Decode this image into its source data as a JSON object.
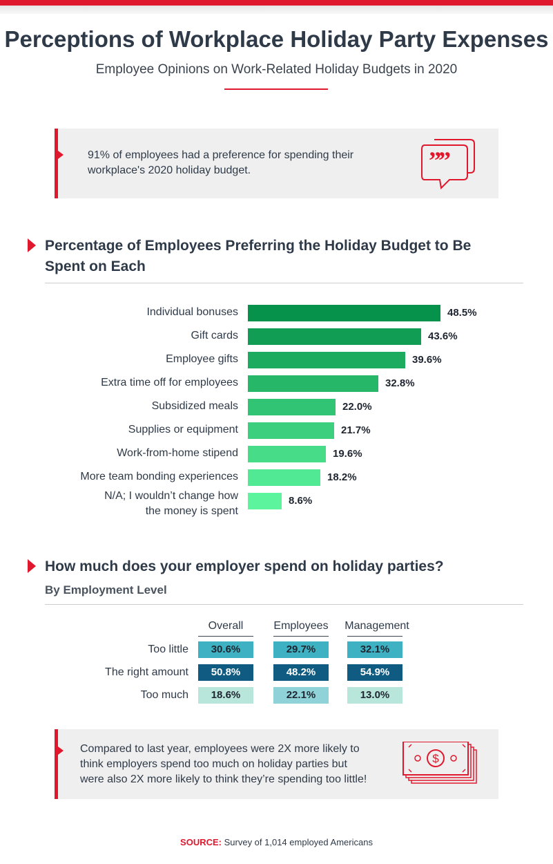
{
  "title": "Perceptions of Workplace Holiday Party Expenses",
  "subtitle": "Employee Opinions on Work-Related Holiday Budgets in 2020",
  "callout1": {
    "line1": "91% of employees had a preference for spending their",
    "line2": "workplace's 2020 holiday budget.",
    "icon": "quote-speech-bubbles-icon"
  },
  "section1": {
    "title_line1": "Percentage of Employees Preferring the Holiday Budget to Be",
    "title_line2": "Spent on Each"
  },
  "section2": {
    "title": "How much does your employer spend on holiday parties?",
    "subtitle": "By Employment  Level"
  },
  "callout2": {
    "line1": "Compared to last year, employees were 2X more likely to",
    "line2": "think employers spend too much on holiday parties but",
    "line3": "were also 2X more likely to think they’re spending too little!",
    "icon": "money-bills-icon"
  },
  "source": {
    "label": "SOURCE:",
    "text": "Survey of 1,014 employed Americans"
  },
  "colors": {
    "accent": "#e0182d",
    "bar_darkest": "#06924a",
    "bar_lightest": "#5cf59d",
    "table_too_little": "#3eb2c2",
    "table_right_amount": "#0f5b82",
    "table_too_much": "#b9e6da"
  },
  "chart_data": [
    {
      "type": "bar",
      "orientation": "horizontal",
      "categories": [
        "Individual bonuses",
        "Gift cards",
        "Employee gifts",
        "Extra time off for employees",
        "Subsidized meals",
        "Supplies or equipment",
        "Work-from-home stipend",
        "More team bonding experiences",
        "N/A; I wouldn’t change how the money is spent"
      ],
      "values": [
        48.5,
        43.6,
        39.6,
        32.8,
        22.0,
        21.7,
        19.6,
        18.2,
        8.6
      ],
      "value_labels": [
        "48.5%",
        "43.6%",
        "39.6%",
        "32.8%",
        "22.0%",
        "21.7%",
        "19.6%",
        "18.2%",
        "8.6%"
      ],
      "xlim": [
        0,
        48.5
      ],
      "grid": false
    },
    {
      "type": "table",
      "columns": [
        "Overall",
        "Employees",
        "Management"
      ],
      "rows": [
        {
          "label": "Too little",
          "values": [
            "30.6%",
            "29.7%",
            "32.1%"
          ]
        },
        {
          "label": "The right amount",
          "values": [
            "50.8%",
            "48.2%",
            "54.9%"
          ]
        },
        {
          "label": "Too much",
          "values": [
            "18.6%",
            "22.1%",
            "13.0%"
          ]
        }
      ]
    }
  ]
}
